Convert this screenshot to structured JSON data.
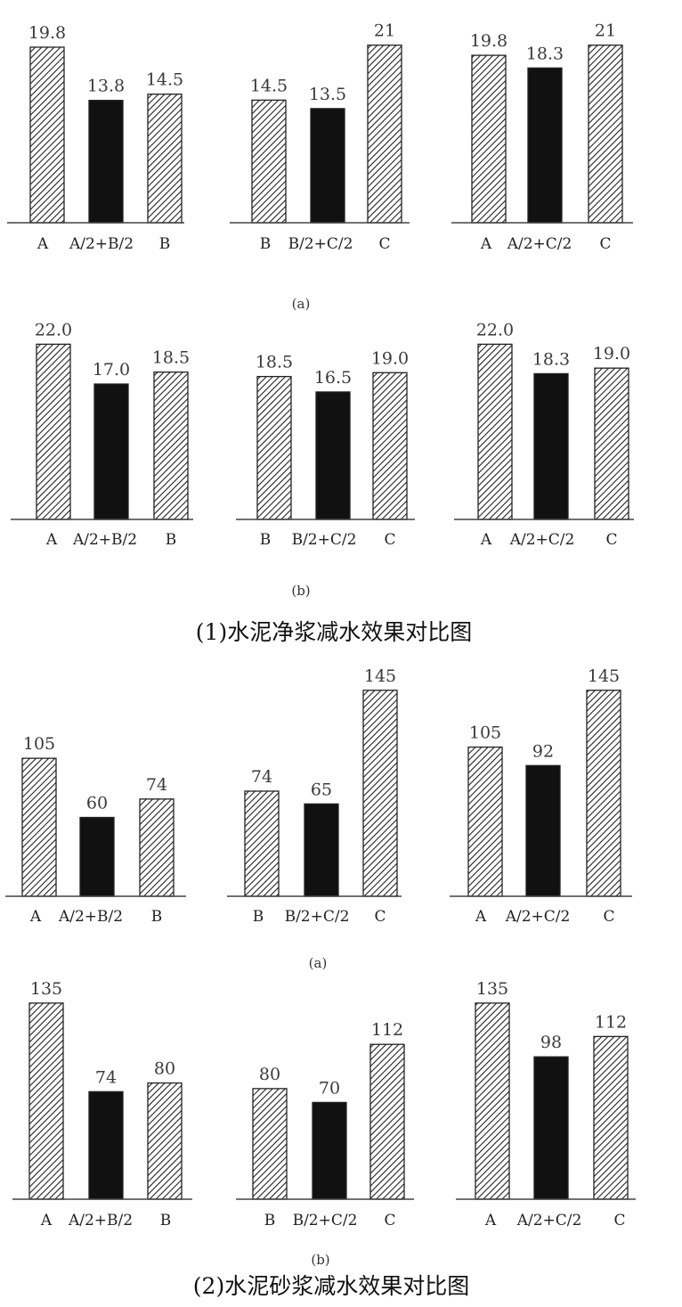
{
  "colors": {
    "hatch_bar": "#ffffff",
    "hatch_stroke": "#222222",
    "blend_bar": "#111111",
    "axis": "#444444"
  },
  "captions": {
    "section1": "(1)水泥净浆减水效果对比图",
    "section2": "(2)水泥砂浆减水效果对比图"
  },
  "chart_data": [
    {
      "section": 1,
      "sublabel": "(a)",
      "type": "bar",
      "categories": [
        "A",
        "A/2+B/2",
        "B"
      ],
      "values": [
        19.8,
        13.8,
        14.5
      ],
      "value_labels": [
        "19.8",
        "13.8",
        "14.5"
      ],
      "bar_styles": [
        "hatch",
        "solid",
        "hatch"
      ],
      "ylim": [
        0,
        20.6
      ]
    },
    {
      "section": 1,
      "sublabel": "(a)",
      "type": "bar",
      "categories": [
        "B",
        "B/2+C/2",
        "C"
      ],
      "values": [
        14.5,
        13.5,
        21
      ],
      "value_labels": [
        "14.5",
        "13.5",
        "21"
      ],
      "bar_styles": [
        "hatch",
        "solid",
        "hatch"
      ],
      "ylim": [
        0,
        21.6
      ]
    },
    {
      "section": 1,
      "sublabel": "(a)",
      "type": "bar",
      "categories": [
        "A",
        "A/2+C/2",
        "C"
      ],
      "values": [
        19.8,
        18.3,
        21
      ],
      "value_labels": [
        "19.8",
        "18.3",
        "21"
      ],
      "bar_styles": [
        "hatch",
        "solid",
        "hatch"
      ],
      "ylim": [
        0,
        21.6
      ]
    },
    {
      "section": 1,
      "sublabel": "(b)",
      "type": "bar",
      "categories": [
        "A",
        "A/2+B/2",
        "B"
      ],
      "values": [
        22.0,
        17.0,
        18.5
      ],
      "value_labels": [
        "22.0",
        "17.0",
        "18.5"
      ],
      "bar_styles": [
        "hatch",
        "solid",
        "hatch"
      ],
      "ylim": [
        0,
        22.6
      ]
    },
    {
      "section": 1,
      "sublabel": "(b)",
      "type": "bar",
      "categories": [
        "B",
        "B/2+C/2",
        "C"
      ],
      "values": [
        18.5,
        16.5,
        19.0
      ],
      "value_labels": [
        "18.5",
        "16.5",
        "19.0"
      ],
      "bar_styles": [
        "hatch",
        "solid",
        "hatch"
      ],
      "ylim": [
        0,
        23.3
      ]
    },
    {
      "section": 1,
      "sublabel": "(b)",
      "type": "bar",
      "categories": [
        "A",
        "A/2+C/2",
        "C"
      ],
      "values": [
        22.0,
        18.3,
        19.0
      ],
      "value_labels": [
        "22.0",
        "18.3",
        "19.0"
      ],
      "bar_styles": [
        "hatch",
        "solid",
        "hatch"
      ],
      "ylim": [
        0,
        22.6
      ]
    },
    {
      "section": 2,
      "sublabel": "(a)",
      "type": "bar",
      "categories": [
        "A",
        "A/2+B/2",
        "B"
      ],
      "values": [
        105,
        60,
        74
      ],
      "value_labels": [
        "105",
        "60",
        "74"
      ],
      "bar_styles": [
        "hatch",
        "solid",
        "hatch"
      ],
      "ylim": [
        0,
        160
      ]
    },
    {
      "section": 2,
      "sublabel": "(a)",
      "type": "bar",
      "categories": [
        "B",
        "B/2+C/2",
        "C"
      ],
      "values": [
        74,
        65,
        145
      ],
      "value_labels": [
        "74",
        "65",
        "145"
      ],
      "bar_styles": [
        "hatch",
        "solid",
        "hatch"
      ],
      "ylim": [
        0,
        148
      ]
    },
    {
      "section": 2,
      "sublabel": "(a)",
      "type": "bar",
      "categories": [
        "A",
        "A/2+C/2",
        "C"
      ],
      "values": [
        105,
        92,
        145
      ],
      "value_labels": [
        "105",
        "92",
        "145"
      ],
      "bar_styles": [
        "hatch",
        "solid",
        "hatch"
      ],
      "ylim": [
        0,
        148
      ]
    },
    {
      "section": 2,
      "sublabel": "(b)",
      "type": "bar",
      "categories": [
        "A",
        "A/2+B/2",
        "B"
      ],
      "values": [
        135,
        74,
        80
      ],
      "value_labels": [
        "135",
        "74",
        "80"
      ],
      "bar_styles": [
        "hatch",
        "solid",
        "hatch"
      ],
      "ylim": [
        0,
        138
      ]
    },
    {
      "section": 2,
      "sublabel": "(b)",
      "type": "bar",
      "categories": [
        "B",
        "B/2+C/2",
        "C"
      ],
      "values": [
        80,
        70,
        112
      ],
      "value_labels": [
        "80",
        "70",
        "112"
      ],
      "bar_styles": [
        "hatch",
        "solid",
        "hatch"
      ],
      "ylim": [
        0,
        145
      ]
    },
    {
      "section": 2,
      "sublabel": "(b)",
      "type": "bar",
      "categories": [
        "A",
        "A/2+C/2",
        "C"
      ],
      "values": [
        135,
        98,
        112
      ],
      "value_labels": [
        "135",
        "98",
        "112"
      ],
      "bar_styles": [
        "hatch",
        "solid",
        "hatch"
      ],
      "ylim": [
        0,
        138
      ]
    }
  ]
}
